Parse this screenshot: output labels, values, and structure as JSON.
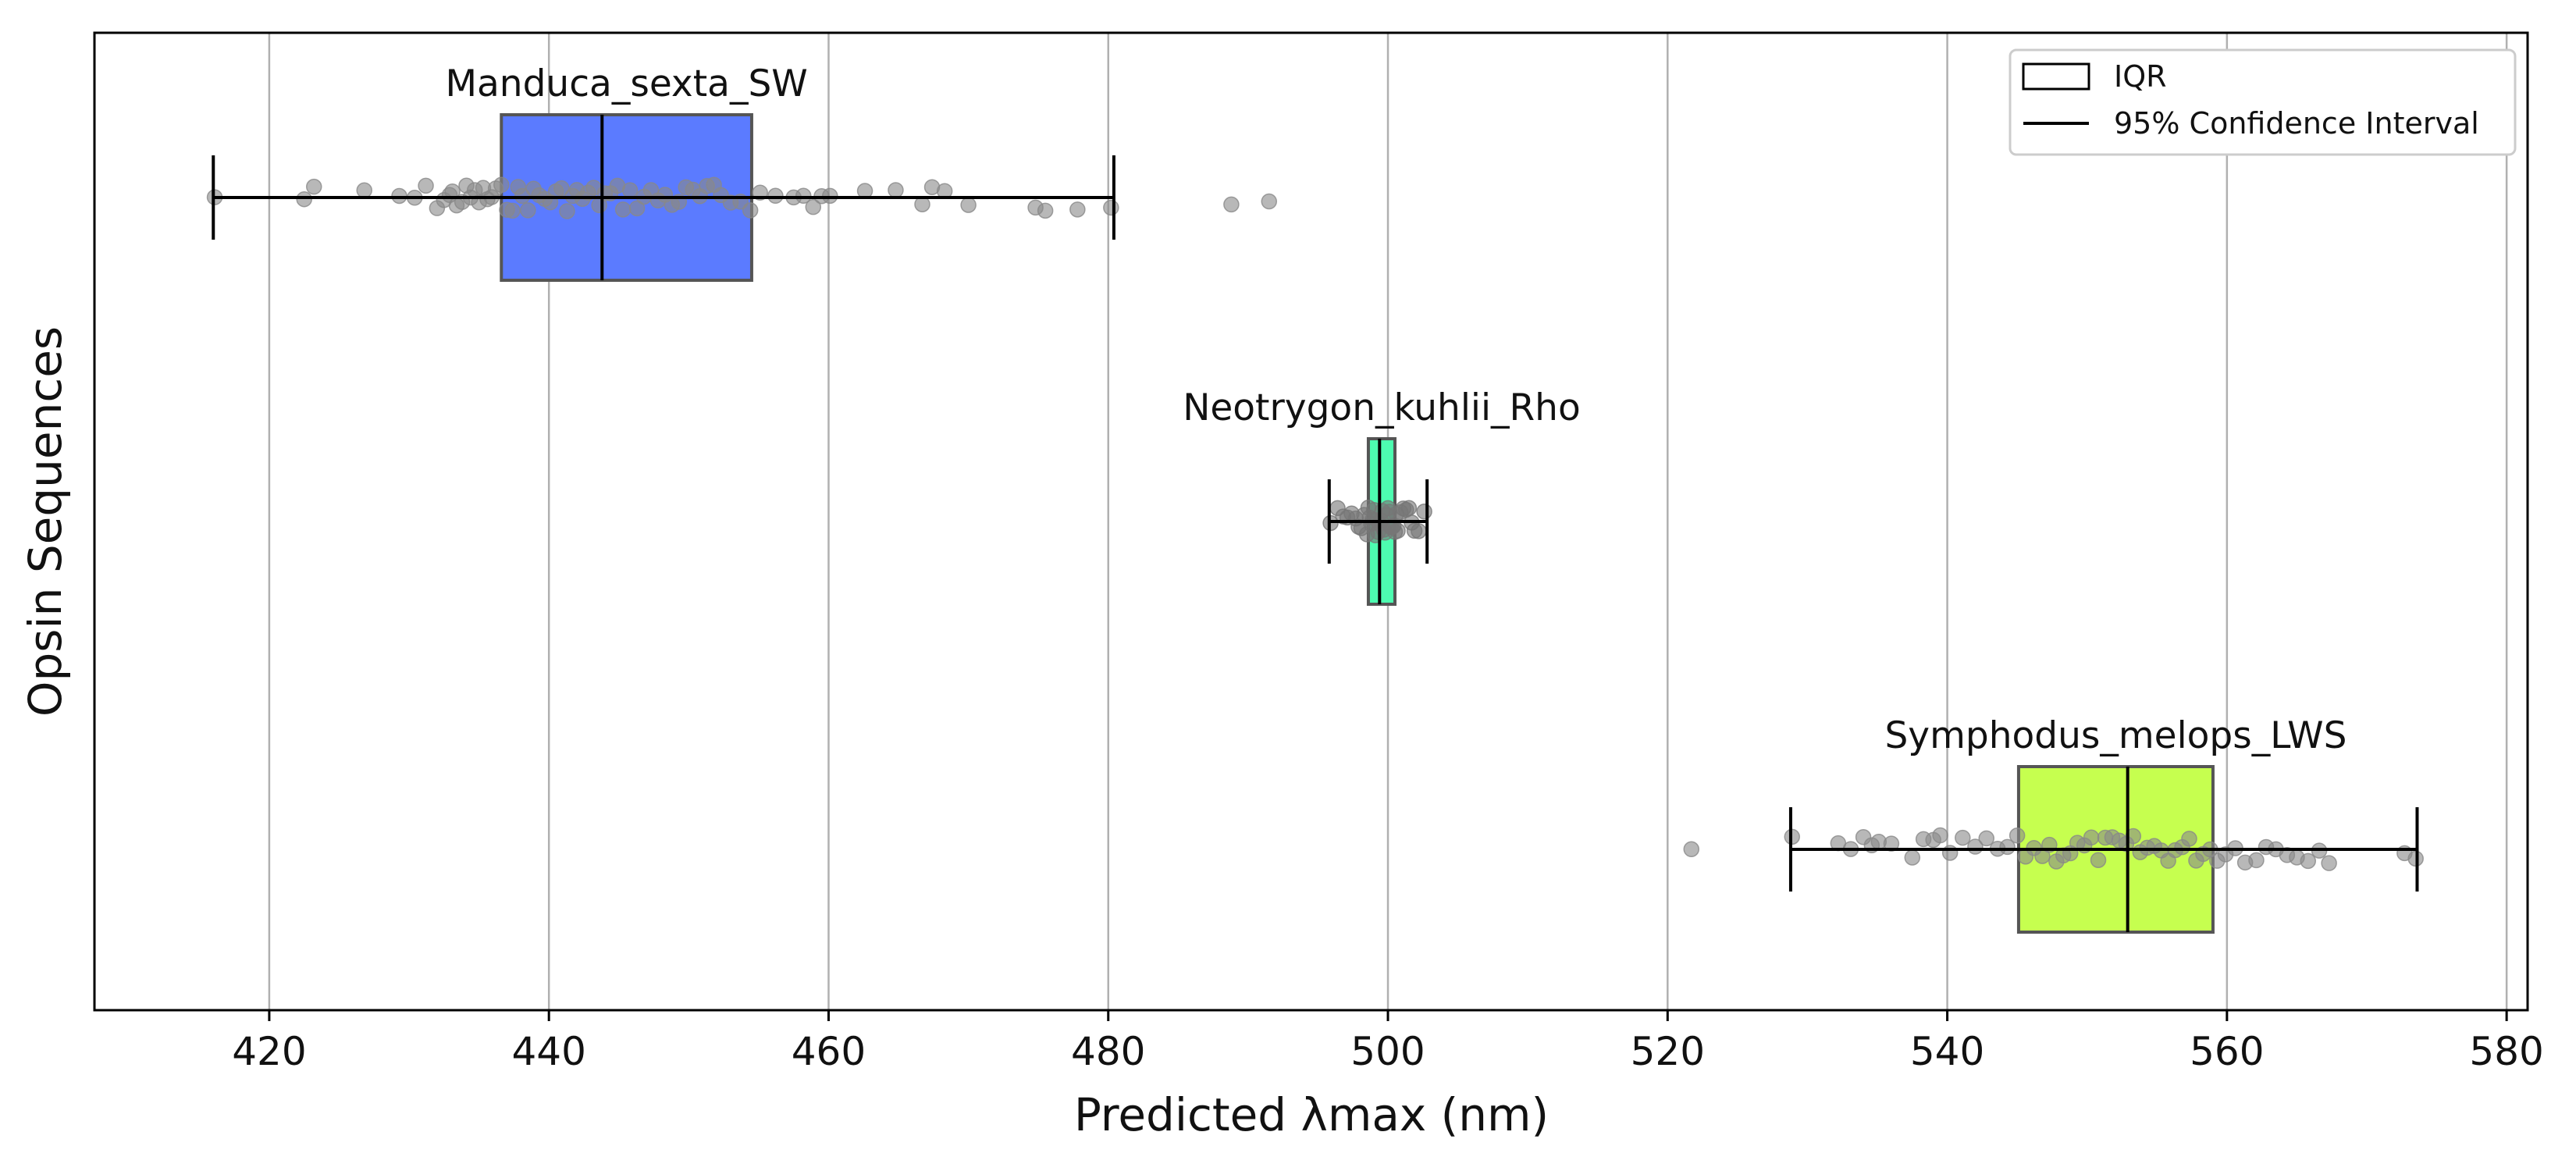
{
  "chart_data": {
    "type": "box",
    "orientation": "horizontal",
    "xlabel": "Predicted λmax (nm)",
    "ylabel": "Opsin Sequences",
    "xlim": [
      407.5,
      581.5
    ],
    "xticks": [
      420,
      440,
      460,
      480,
      500,
      520,
      540,
      560,
      580
    ],
    "grid": "vertical",
    "legend": {
      "placement": "top-right",
      "entries": [
        {
          "label": "IQR",
          "kind": "box"
        },
        {
          "label": "95% Confidence Interval",
          "kind": "line"
        }
      ]
    },
    "series": [
      {
        "name": "Manduca_sexta_SW",
        "color": "#5b7bff",
        "q1": 436.6,
        "median": 443.8,
        "q3": 454.5,
        "ci": [
          416.0,
          480.4
        ],
        "points_color": "#888888",
        "points": [
          416.1,
          422.5,
          423.2,
          426.8,
          429.3,
          430.4,
          431.2,
          432.0,
          432.5,
          432.9,
          433.1,
          433.4,
          433.8,
          434.1,
          434.4,
          434.7,
          435.0,
          435.3,
          435.6,
          435.9,
          436.2,
          436.6,
          437.0,
          437.4,
          437.8,
          438.1,
          438.5,
          438.9,
          439.3,
          439.7,
          440.1,
          440.5,
          440.9,
          441.3,
          441.7,
          442.0,
          442.4,
          442.8,
          443.2,
          443.6,
          444.0,
          444.4,
          444.9,
          445.3,
          445.8,
          446.3,
          446.8,
          447.3,
          447.8,
          448.3,
          448.8,
          449.3,
          449.8,
          450.3,
          450.8,
          451.3,
          451.8,
          452.3,
          453.0,
          453.7,
          454.4,
          455.1,
          456.2,
          457.5,
          458.2,
          458.9,
          459.5,
          460.1,
          462.6,
          464.8,
          466.7,
          467.4,
          468.3,
          470.0,
          474.8,
          475.5,
          477.8,
          480.2,
          488.8,
          491.5
        ]
      },
      {
        "name": "Neotrygon_kuhlii_Rho",
        "color": "#4dfcb0",
        "q1": 498.6,
        "median": 499.4,
        "q3": 500.5,
        "ci": [
          495.8,
          502.8
        ],
        "points_color": "#777777",
        "points": [
          495.9,
          496.4,
          496.8,
          497.1,
          497.4,
          497.7,
          497.9,
          498.1,
          498.3,
          498.5,
          498.6,
          498.7,
          498.8,
          498.9,
          499.0,
          499.1,
          499.2,
          499.3,
          499.4,
          499.5,
          499.6,
          499.7,
          499.8,
          499.9,
          500.0,
          500.1,
          500.2,
          500.3,
          500.4,
          500.5,
          500.6,
          500.7,
          500.9,
          501.1,
          501.3,
          501.5,
          501.7,
          501.9,
          502.2,
          502.6
        ]
      },
      {
        "name": "Symphodus_melops_LWS",
        "color": "#c6ff4f",
        "q1": 545.1,
        "median": 552.9,
        "q3": 559.0,
        "ci": [
          528.8,
          573.6
        ],
        "points_color": "#888888",
        "points": [
          521.7,
          528.9,
          532.2,
          533.1,
          534.0,
          534.6,
          535.1,
          536.0,
          537.5,
          538.3,
          539.0,
          539.5,
          540.2,
          541.1,
          542.0,
          542.8,
          543.6,
          544.3,
          545.0,
          545.6,
          546.2,
          546.8,
          547.3,
          547.8,
          548.3,
          548.8,
          549.3,
          549.8,
          550.3,
          550.8,
          551.3,
          551.8,
          552.3,
          552.8,
          553.3,
          553.8,
          554.3,
          554.8,
          555.3,
          555.8,
          556.3,
          556.8,
          557.3,
          557.8,
          558.3,
          558.8,
          559.3,
          559.9,
          560.6,
          561.3,
          562.1,
          562.8,
          563.5,
          564.3,
          565.0,
          565.8,
          566.6,
          567.3,
          572.7,
          573.5
        ]
      }
    ]
  }
}
